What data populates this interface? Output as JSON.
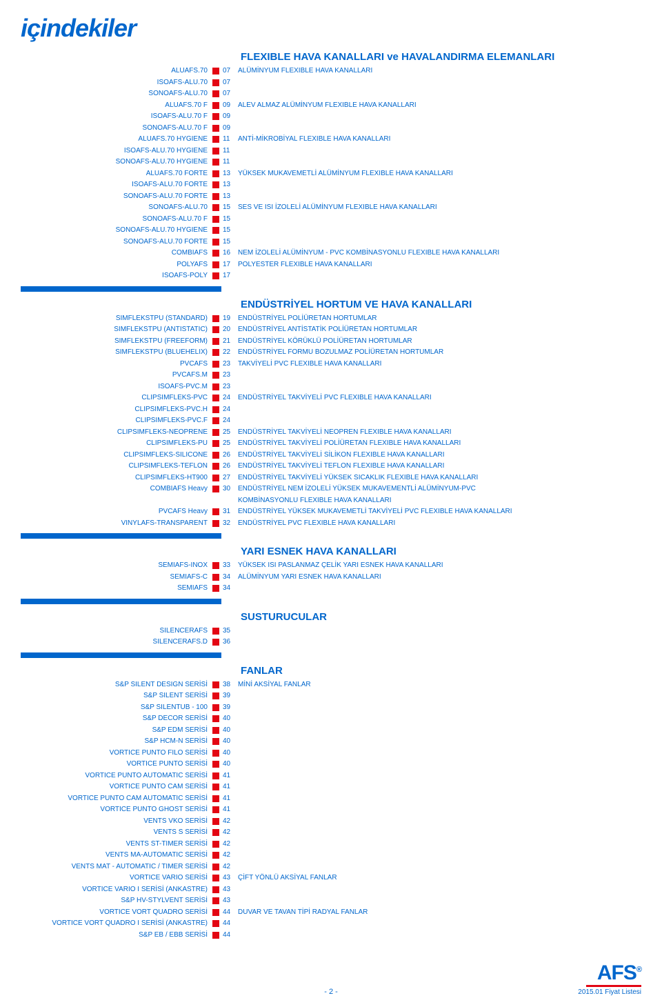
{
  "title": "içindekiler",
  "sections": [
    {
      "header": "FLEXIBLE HAVA KANALLARI ve HAVALANDIRMA ELEMANLARI",
      "header_inline": true,
      "rows": [
        {
          "left": "ALUAFS.70",
          "page": "07",
          "desc": "ALÜMİNYUM FLEXIBLE HAVA KANALLARI"
        },
        {
          "left": "ISOAFS-ALU.70",
          "page": "07",
          "desc": ""
        },
        {
          "left": "SONOAFS-ALU.70",
          "page": "07",
          "desc": ""
        },
        {
          "left": "ALUAFS.70 F",
          "page": "09",
          "desc": "ALEV ALMAZ ALÜMİNYUM FLEXIBLE HAVA KANALLARI"
        },
        {
          "left": "ISOAFS-ALU.70 F",
          "page": "09",
          "desc": ""
        },
        {
          "left": "SONOAFS-ALU.70 F",
          "page": "09",
          "desc": ""
        },
        {
          "left": "ALUAFS.70 HYGIENE",
          "page": "11",
          "desc": "ANTİ-MİKROBİYAL FLEXIBLE HAVA KANALLARI"
        },
        {
          "left": "ISOAFS-ALU.70 HYGIENE",
          "page": "11",
          "desc": ""
        },
        {
          "left": "SONOAFS-ALU.70 HYGIENE",
          "page": "11",
          "desc": ""
        },
        {
          "left": "ALUAFS.70 FORTE",
          "page": "13",
          "desc": "YÜKSEK MUKAVEMETLİ ALÜMİNYUM FLEXIBLE HAVA KANALLARI"
        },
        {
          "left": "ISOAFS-ALU.70 FORTE",
          "page": "13",
          "desc": ""
        },
        {
          "left": "SONOAFS-ALU.70 FORTE",
          "page": "13",
          "desc": ""
        },
        {
          "left": "SONOAFS-ALU.70",
          "page": "15",
          "desc": "SES VE ISI İZOLELİ ALÜMİNYUM FLEXIBLE HAVA KANALLARI"
        },
        {
          "left": "SONOAFS-ALU.70 F",
          "page": "15",
          "desc": ""
        },
        {
          "left": "SONOAFS-ALU.70 HYGIENE",
          "page": "15",
          "desc": ""
        },
        {
          "left": "SONOAFS-ALU.70 FORTE",
          "page": "15",
          "desc": ""
        },
        {
          "left": "COMBIAFS",
          "page": "16",
          "desc": "NEM İZOLELİ ALÜMİNYUM - PVC KOMBİNASYONLU FLEXIBLE HAVA KANALLARI"
        },
        {
          "left": "POLYAFS",
          "page": "17",
          "desc": "POLYESTER FLEXIBLE HAVA KANALLARI"
        },
        {
          "left": "ISOAFS-POLY",
          "page": "17",
          "desc": ""
        }
      ]
    },
    {
      "header": "ENDÜSTRİYEL HORTUM VE HAVA KANALLARI",
      "rows": [
        {
          "left": "SIMFLEKSTPU (STANDARD)",
          "page": "19",
          "desc": "ENDÜSTRİYEL POLİÜRETAN HORTUMLAR"
        },
        {
          "left": "SIMFLEKSTPU (ANTISTATIC)",
          "page": "20",
          "desc": "ENDÜSTRİYEL ANTİSTATİK POLİÜRETAN HORTUMLAR"
        },
        {
          "left": "SIMFLEKSTPU (FREEFORM)",
          "page": "21",
          "desc": "ENDÜSTRİYEL KÖRÜKLÜ POLİÜRETAN HORTUMLAR"
        },
        {
          "left": "SIMFLEKSTPU (BLUEHELIX)",
          "page": "22",
          "desc": "ENDÜSTRİYEL FORMU BOZULMAZ POLİÜRETAN HORTUMLAR"
        },
        {
          "left": "PVCAFS",
          "page": "23",
          "desc": "TAKVİYELİ PVC FLEXIBLE HAVA KANALLARI"
        },
        {
          "left": "PVCAFS.M",
          "page": "23",
          "desc": ""
        },
        {
          "left": "ISOAFS-PVC.M",
          "page": "23",
          "desc": ""
        },
        {
          "left": "CLIPSIMFLEKS-PVC",
          "page": "24",
          "desc": "ENDÜSTRİYEL TAKVİYELİ PVC FLEXIBLE HAVA KANALLARI"
        },
        {
          "left": "CLIPSIMFLEKS-PVC.H",
          "page": "24",
          "desc": ""
        },
        {
          "left": "CLIPSIMFLEKS-PVC.F",
          "page": "24",
          "desc": ""
        },
        {
          "left": "CLIPSIMFLEKS-NEOPRENE",
          "page": "25",
          "desc": "ENDÜSTRİYEL TAKVİYELİ NEOPREN FLEXIBLE HAVA KANALLARI"
        },
        {
          "left": "CLIPSIMFLEKS-PU",
          "page": "25",
          "desc": "ENDÜSTRİYEL TAKVİYELİ POLİÜRETAN FLEXIBLE HAVA KANALLARI"
        },
        {
          "left": "CLIPSIMFLEKS-SILICONE",
          "page": "26",
          "desc": "ENDÜSTRİYEL TAKVİYELİ SİLİKON FLEXIBLE HAVA KANALLARI"
        },
        {
          "left": "CLIPSIMFLEKS-TEFLON",
          "page": "26",
          "desc": "ENDÜSTRİYEL TAKVİYELİ TEFLON FLEXIBLE HAVA KANALLARI"
        },
        {
          "left": "CLIPSIMFLEKS-HT900",
          "page": "27",
          "desc": "ENDÜSTRİYEL TAKVİYELİ YÜKSEK SICAKLIK FLEXIBLE HAVA KANALLARI"
        },
        {
          "left": "COMBIAFS Heavy",
          "page": "30",
          "desc": "ENDÜSTRİYEL NEM İZOLELİ YÜKSEK MUKAVEMENTLİ ALÜMİNYUM-PVC"
        },
        {
          "left": "",
          "page": "",
          "desc": "KOMBİNASYONLU FLEXIBLE HAVA KANALLARI",
          "no_square": true
        },
        {
          "left": "PVCAFS Heavy",
          "page": "31",
          "desc": "ENDÜSTRİYEL YÜKSEK MUKAVEMETLİ TAKVİYELİ PVC FLEXIBLE HAVA KANALLARI"
        },
        {
          "left": "VINYLAFS-TRANSPARENT",
          "page": "32",
          "desc": "ENDÜSTRİYEL PVC FLEXIBLE HAVA KANALLARI"
        }
      ]
    },
    {
      "header": "YARI ESNEK HAVA KANALLARI",
      "rows": [
        {
          "left": "SEMIAFS-INOX",
          "page": "33",
          "desc": "YÜKSEK ISI PASLANMAZ ÇELİK YARI ESNEK HAVA KANALLARI"
        },
        {
          "left": "SEMIAFS-C",
          "page": "34",
          "desc": "ALÜMİNYUM YARI ESNEK HAVA KANALLARI"
        },
        {
          "left": "SEMIAFS",
          "page": "34",
          "desc": ""
        }
      ]
    },
    {
      "header": "SUSTURUCULAR",
      "rows": [
        {
          "left": "SILENCERAFS",
          "page": "35",
          "desc": ""
        },
        {
          "left": "SILENCERAFS.D",
          "page": "36",
          "desc": ""
        }
      ]
    },
    {
      "header": "FANLAR",
      "rows": [
        {
          "left": "S&P SILENT DESIGN SERİSİ",
          "page": "38",
          "desc": "MİNİ AKSİYAL FANLAR"
        },
        {
          "left": "S&P SILENT SERİSİ",
          "page": "39",
          "desc": ""
        },
        {
          "left": "S&P SILENTUB - 100",
          "page": "39",
          "desc": ""
        },
        {
          "left": "S&P DECOR SERİSİ",
          "page": "40",
          "desc": ""
        },
        {
          "left": "S&P EDM SERİSİ",
          "page": "40",
          "desc": ""
        },
        {
          "left": "S&P HCM-N SERİSİ",
          "page": "40",
          "desc": ""
        },
        {
          "left": "VORTICE PUNTO FILO SERİSİ",
          "page": "40",
          "desc": ""
        },
        {
          "left": "VORTICE PUNTO SERİSİ",
          "page": "40",
          "desc": ""
        },
        {
          "left": "VORTICE PUNTO AUTOMATIC SERİSİ",
          "page": "41",
          "desc": ""
        },
        {
          "left": "VORTICE PUNTO CAM SERİSİ",
          "page": "41",
          "desc": ""
        },
        {
          "left": "VORTICE PUNTO CAM AUTOMATIC SERİSİ",
          "page": "41",
          "desc": ""
        },
        {
          "left": "VORTICE PUNTO GHOST SERİSİ",
          "page": "41",
          "desc": ""
        },
        {
          "left": "VENTS VKO SERİSİ",
          "page": "42",
          "desc": ""
        },
        {
          "left": "VENTS S SERİSİ",
          "page": "42",
          "desc": ""
        },
        {
          "left": "VENTS ST-TIMER SERİSİ",
          "page": "42",
          "desc": ""
        },
        {
          "left": "VENTS MA-AUTOMATIC SERİSİ",
          "page": "42",
          "desc": ""
        },
        {
          "left": "VENTS MAT - AUTOMATIC / TIMER SERİSİ",
          "page": "42",
          "desc": ""
        },
        {
          "left": "VORTICE VARIO SERİSİ",
          "page": "43",
          "desc": "ÇİFT YÖNLÜ AKSİYAL FANLAR"
        },
        {
          "left": "VORTICE VARIO I SERİSİ (ANKASTRE)",
          "page": "43",
          "desc": ""
        },
        {
          "left": "S&P HV-STYLVENT SERİSİ",
          "page": "43",
          "desc": ""
        },
        {
          "left": "VORTICE VORT QUADRO SERİSİ",
          "page": "44",
          "desc": "DUVAR VE TAVAN TİPİ RADYAL FANLAR"
        },
        {
          "left": "VORTICE VORT QUADRO I SERİSİ (ANKASTRE)",
          "page": "44",
          "desc": ""
        },
        {
          "left": "S&P EB / EBB SERİSİ",
          "page": "44",
          "desc": ""
        }
      ]
    }
  ],
  "footer": {
    "page": "- 2 -",
    "right": "2015.01 Fiyat Listesi",
    "logo": "AFS"
  },
  "colors": {
    "primary": "#0066cc",
    "accent": "#e30613",
    "bg": "#ffffff"
  }
}
